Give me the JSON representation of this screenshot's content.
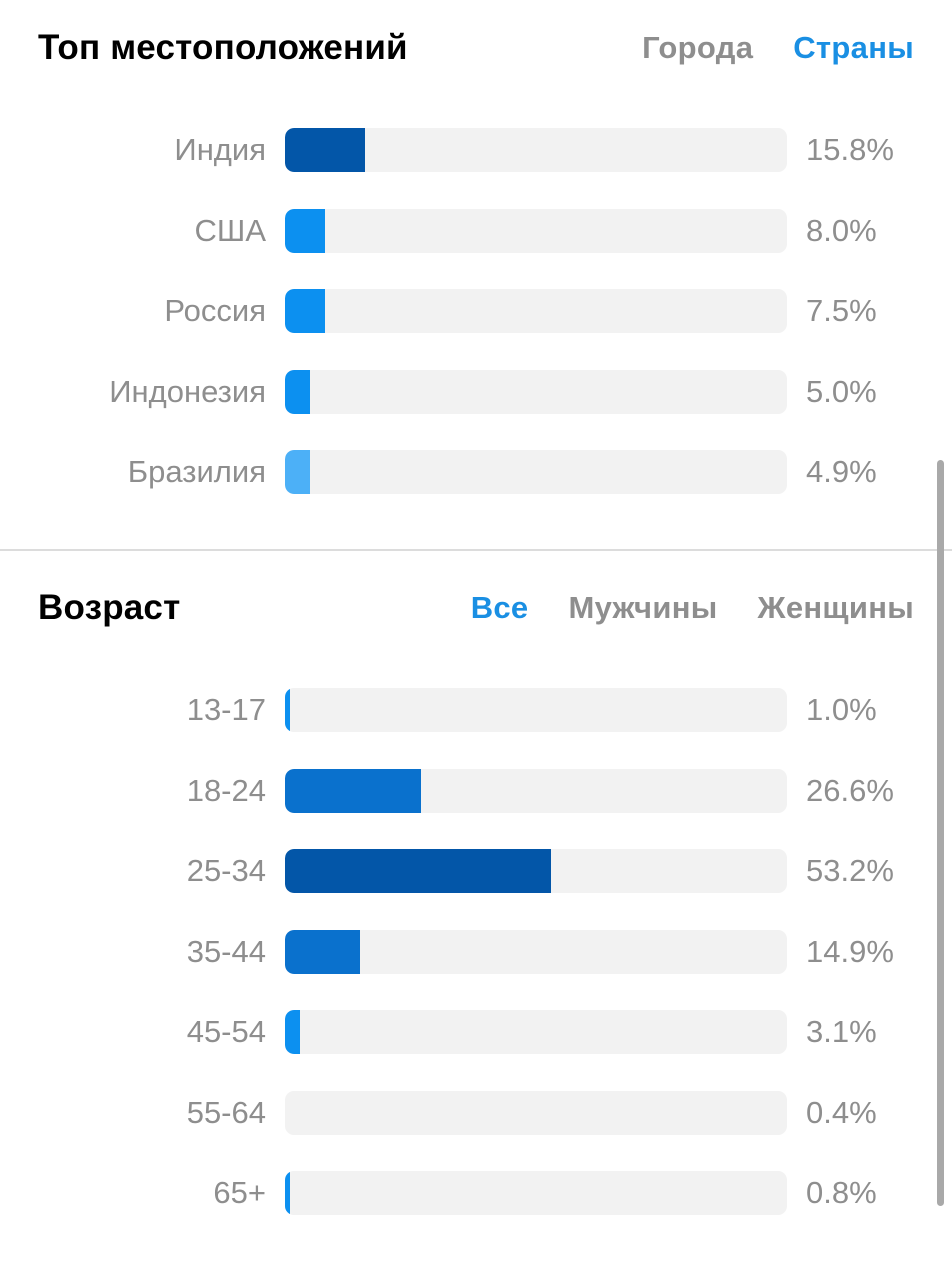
{
  "locations": {
    "title": "Топ местоположений",
    "tabs": [
      {
        "label": "Города",
        "active": false
      },
      {
        "label": "Страны",
        "active": true
      }
    ],
    "rows": [
      {
        "label": "Индия",
        "value_text": "15.8%",
        "fraction": 0.16,
        "color": "#0356a8"
      },
      {
        "label": "США",
        "value_text": "8.0%",
        "fraction": 0.08,
        "color": "#0c90f0"
      },
      {
        "label": "Россия",
        "value_text": "7.5%",
        "fraction": 0.08,
        "color": "#0c90f0"
      },
      {
        "label": "Индонезия",
        "value_text": "5.0%",
        "fraction": 0.05,
        "color": "#0c90f0"
      },
      {
        "label": "Бразилия",
        "value_text": "4.9%",
        "fraction": 0.05,
        "color": "#4cb0f7"
      }
    ]
  },
  "age": {
    "title": "Возраст",
    "tabs": [
      {
        "label": "Все",
        "active": true
      },
      {
        "label": "Мужчины",
        "active": false
      },
      {
        "label": "Женщины",
        "active": false
      }
    ],
    "rows": [
      {
        "label": "13-17",
        "value_text": "1.0%",
        "fraction": 0.01,
        "color": "#0c90f0"
      },
      {
        "label": "18-24",
        "value_text": "26.6%",
        "fraction": 0.27,
        "color": "#0a71cd"
      },
      {
        "label": "25-34",
        "value_text": "53.2%",
        "fraction": 0.53,
        "color": "#0356a8"
      },
      {
        "label": "35-44",
        "value_text": "14.9%",
        "fraction": 0.15,
        "color": "#0a71cd"
      },
      {
        "label": "45-54",
        "value_text": "3.1%",
        "fraction": 0.03,
        "color": "#0c90f0"
      },
      {
        "label": "55-64",
        "value_text": "0.4%",
        "fraction": 0.0,
        "color": "#0c90f0"
      },
      {
        "label": "65+",
        "value_text": "0.8%",
        "fraction": 0.01,
        "color": "#0c90f0"
      }
    ]
  }
}
